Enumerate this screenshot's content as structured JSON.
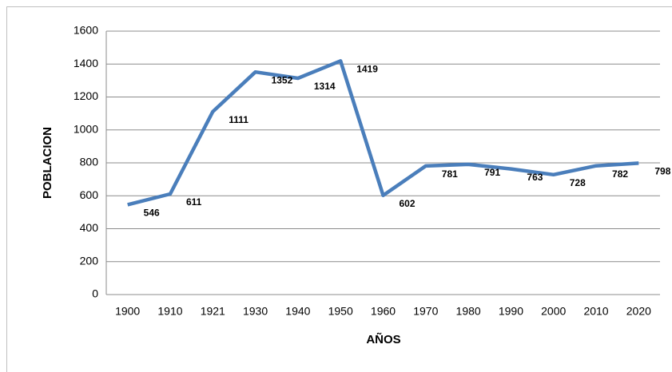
{
  "chart_data": {
    "type": "line",
    "x_label": "AÑOS",
    "y_label": "POBLACION",
    "categories": [
      "1900",
      "1910",
      "1921",
      "1930",
      "1940",
      "1950",
      "1960",
      "1970",
      "1980",
      "1990",
      "2000",
      "2010",
      "2020"
    ],
    "values": [
      546,
      611,
      1111,
      1352,
      1314,
      1419,
      602,
      781,
      791,
      763,
      728,
      782,
      798
    ],
    "color": "#4a7ebb",
    "ylim": [
      0,
      1600
    ],
    "yticks": [
      0,
      200,
      400,
      600,
      800,
      1000,
      1200,
      1400,
      1600
    ],
    "grid": true
  }
}
